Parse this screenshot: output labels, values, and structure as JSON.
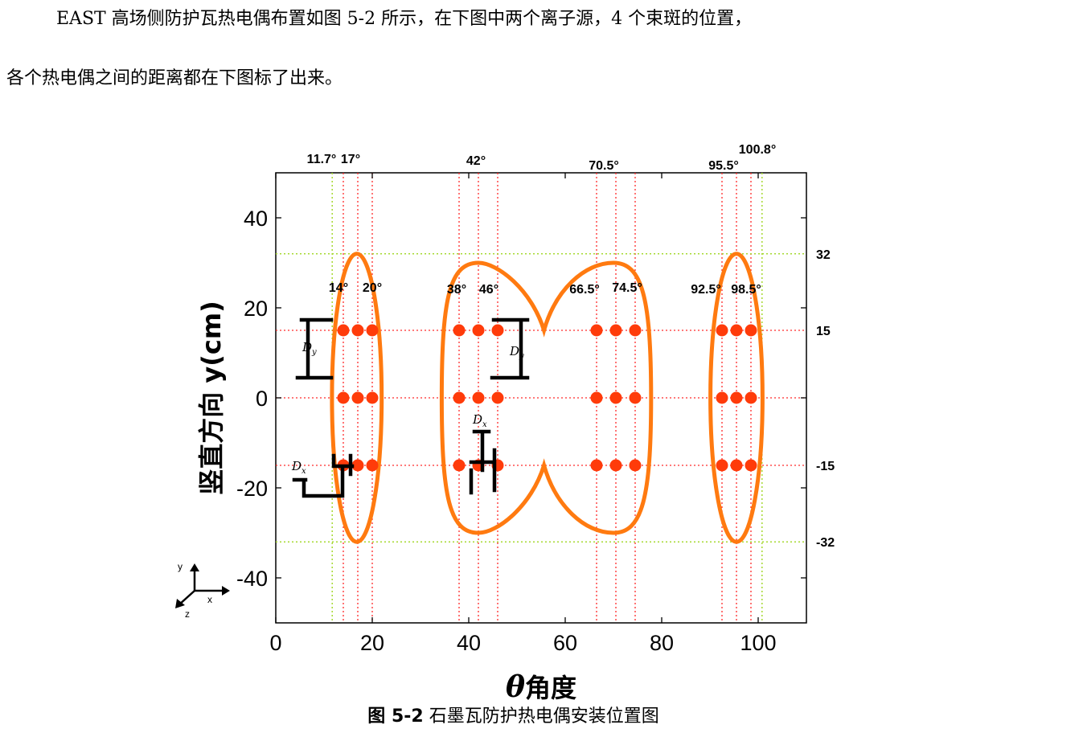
{
  "paragraph": {
    "line1": "EAST 高场侧防护瓦热电偶布置如图 5-2 所示，在下图中两个离子源，4 个束斑的位置，",
    "line2": "各个热电偶之间的距离都在下图标了出来。"
  },
  "caption": {
    "label": "图 5-2",
    "text": "石墨瓦防护热电偶安装位置图"
  },
  "chart_data": {
    "type": "scatter",
    "xlabel_symbol": "θ",
    "xlabel": "角度",
    "ylabel": "竖直方向 y(cm)",
    "xlim": [
      0,
      110
    ],
    "ylim": [
      -50,
      50
    ],
    "xticks": [
      0,
      20,
      40,
      60,
      80,
      100
    ],
    "yticks": [
      -40,
      -20,
      0,
      20,
      40
    ],
    "colors": {
      "points": "#ff3b0a",
      "outline": "#ff7a10",
      "red_grid": "#ff2a2a",
      "green_grid": "#a6d930",
      "markers": "#000000"
    },
    "top_angle_labels": [
      "11.7°",
      "17°",
      "42°",
      "70.5°",
      "95.5°",
      "100.8°"
    ],
    "top_angle_values": [
      11.7,
      17,
      42,
      70.5,
      95.5,
      100.8
    ],
    "right_labels": [
      "32",
      "15",
      "-15",
      "-32"
    ],
    "right_values": [
      32,
      15,
      -15,
      -32
    ],
    "inner_angle_labels": [
      "14°",
      "20°",
      "38°",
      "46°",
      "66.5°",
      "74.5°",
      "92.5°",
      "98.5°"
    ],
    "inner_angle_values": [
      14,
      20,
      38,
      46,
      66.5,
      74.5,
      92.5,
      98.5
    ],
    "red_vertical_lines": [
      14,
      17,
      20,
      38,
      42,
      46,
      66.5,
      70.5,
      74.5,
      92.5,
      95.5,
      98.5
    ],
    "green_vertical_lines": [
      11.7,
      100.8
    ],
    "red_horizontal_lines": [
      15,
      0,
      -15
    ],
    "green_horizontal_lines": [
      32,
      -32
    ],
    "thermocouple_x": [
      14,
      17,
      20,
      38,
      42,
      46,
      66.5,
      70.5,
      74.5,
      92.5,
      95.5,
      98.5
    ],
    "thermocouple_y": [
      15,
      0,
      -15
    ],
    "dimension_labels": {
      "dy": "D",
      "dy_sub": "y",
      "dx": "D",
      "dx_sub": "x"
    },
    "axes_glyph": {
      "y": "y",
      "x": "x",
      "z": "z"
    }
  }
}
